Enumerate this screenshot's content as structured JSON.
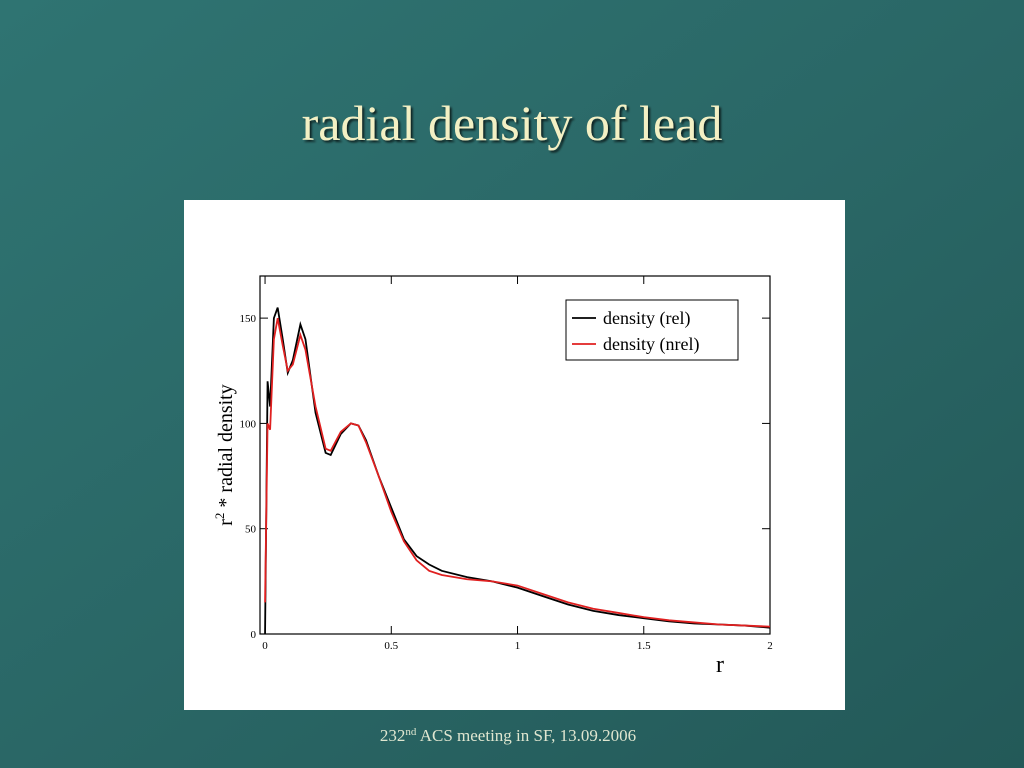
{
  "slide": {
    "title": "radial density of lead",
    "footer": {
      "number": "232",
      "suffix": "nd",
      "text": " ACS meeting in SF, 13.09.2006"
    }
  },
  "chart_data": {
    "type": "line",
    "x_label": "r",
    "y_label": {
      "base": "r",
      "exponent": "2",
      "text": " * radial density"
    },
    "x": [
      0,
      0.01,
      0.02,
      0.035,
      0.05,
      0.07,
      0.09,
      0.11,
      0.14,
      0.16,
      0.2,
      0.24,
      0.26,
      0.3,
      0.34,
      0.37,
      0.4,
      0.45,
      0.5,
      0.55,
      0.6,
      0.65,
      0.7,
      0.8,
      0.9,
      1.0,
      1.1,
      1.2,
      1.3,
      1.4,
      1.5,
      1.6,
      1.7,
      1.8,
      1.9,
      2.0
    ],
    "series": [
      {
        "name": "density (rel)",
        "color": "#000000",
        "values": [
          0,
          120,
          108,
          150,
          155,
          140,
          124,
          130,
          147,
          140,
          105,
          86,
          85,
          95,
          100,
          99,
          92,
          75,
          60,
          45,
          37,
          33,
          30,
          27,
          25,
          22,
          18,
          14,
          11,
          9,
          7.5,
          6,
          5,
          4.5,
          4,
          3
        ]
      },
      {
        "name": "density (nrel)",
        "color": "#e02020",
        "values": [
          15,
          100,
          97,
          140,
          150,
          137,
          125,
          128,
          142,
          135,
          108,
          88,
          87,
          96,
          100,
          99,
          91,
          75,
          58,
          44,
          35,
          30,
          28,
          26,
          25,
          23,
          19,
          15,
          12,
          10,
          8,
          6.5,
          5.5,
          4.5,
          4,
          3.5
        ]
      }
    ],
    "xlim": [
      -0.02,
      2
    ],
    "ylim": [
      0,
      170
    ],
    "xticks": [
      0,
      0.5,
      1,
      1.5,
      2
    ],
    "yticks": [
      0,
      50,
      100,
      150
    ],
    "legend": "upper right"
  }
}
